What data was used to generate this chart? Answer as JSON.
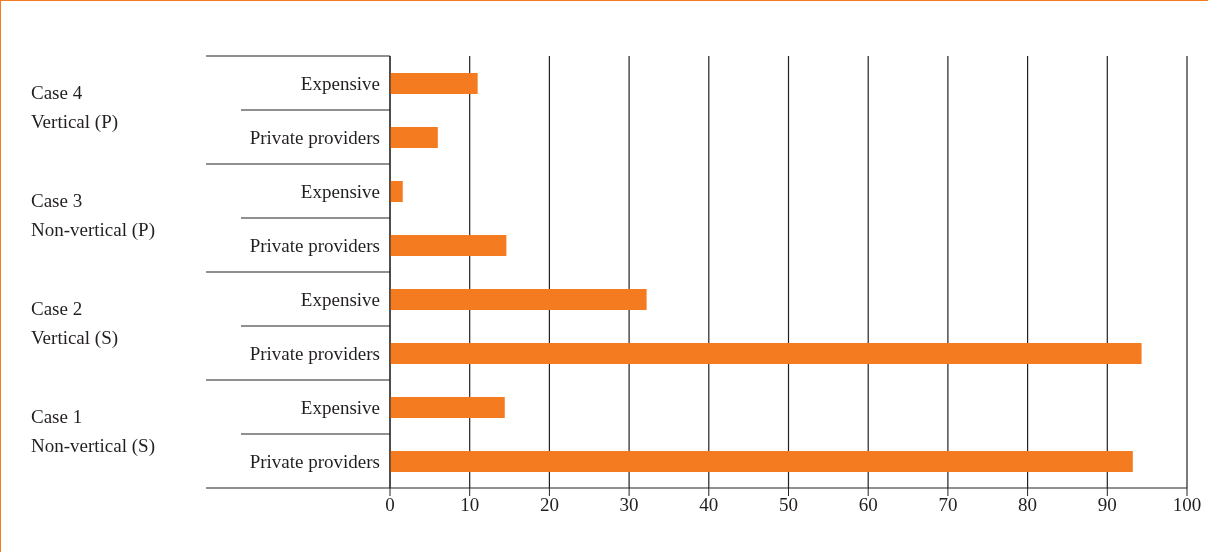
{
  "chart_data": {
    "type": "bar",
    "orientation": "horizontal",
    "categories": [
      "Expensive",
      "Private providers",
      "Expensive",
      "Private providers",
      "Expensive",
      "Private providers",
      "Expensive",
      "Private providers"
    ],
    "values": [
      11.0,
      6.0,
      1.6,
      14.6,
      32.2,
      94.3,
      14.4,
      93.2
    ],
    "color": "#f47b20",
    "annotations": [
      "Case 4\nVertical (P)",
      "Case 3\nNon-vertical (P)",
      "Case 2\nVertical (S)",
      "Case 1\nNon-vertical (S)"
    ],
    "xlim": [
      0,
      100
    ],
    "xticks": [
      0,
      10,
      20,
      30,
      40,
      50,
      60,
      70,
      80,
      90,
      100
    ],
    "grid": "x",
    "legend": false
  }
}
